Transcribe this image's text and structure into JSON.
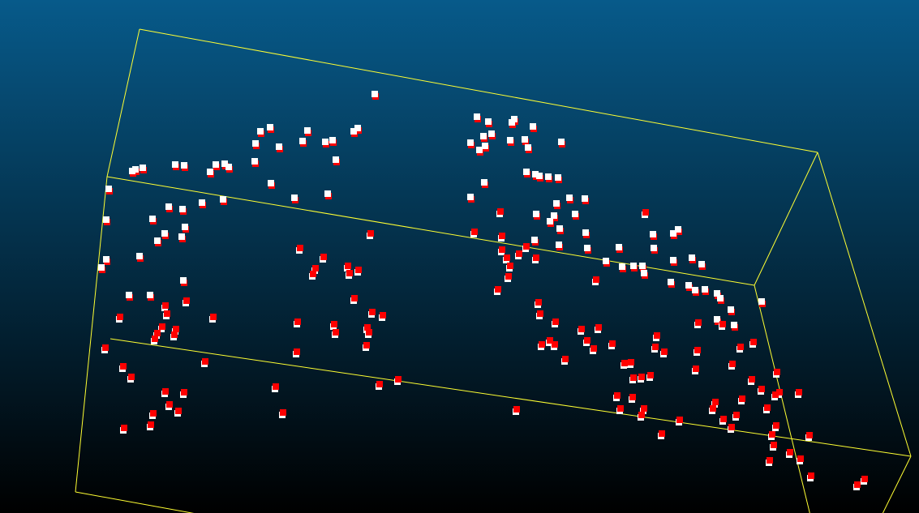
{
  "viewer": {
    "background_top": "#075A8A",
    "background_bottom": "#000000",
    "bounding_box_color": "#FFFF33",
    "white_marker_color": "#FFFFFF",
    "red_marker_color": "#FF0000"
  },
  "point_cloud": {
    "marker_shape": "square",
    "classes": [
      "white",
      "red"
    ]
  }
}
